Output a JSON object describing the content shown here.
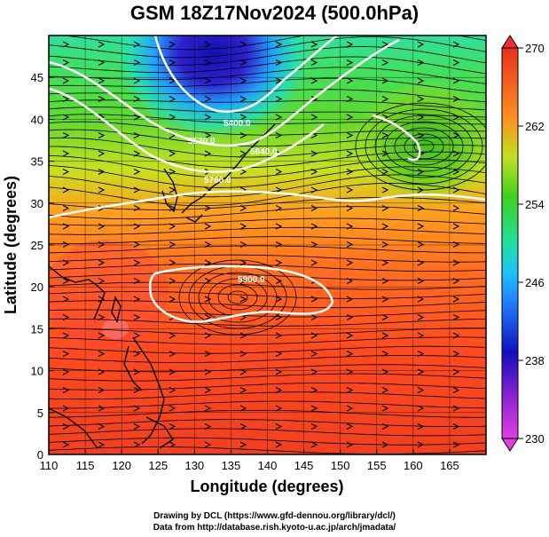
{
  "title": "GSM 18Z17Nov2024 (500.0hPa)",
  "x_axis": {
    "label": "Longitude (degrees)",
    "range": [
      110,
      170
    ],
    "ticks": [
      "110",
      "115",
      "120",
      "125",
      "130",
      "135",
      "140",
      "145",
      "150",
      "155",
      "160",
      "165"
    ]
  },
  "y_axis": {
    "label": "Latitude (degrees)",
    "range": [
      0,
      50
    ],
    "ticks": [
      "0",
      "5",
      "10",
      "15",
      "20",
      "25",
      "30",
      "35",
      "40",
      "45"
    ]
  },
  "colorbar": {
    "min": 230,
    "max": 270,
    "labels": [
      "270",
      "262",
      "254",
      "246",
      "238",
      "230"
    ]
  },
  "contours": [
    {
      "label": "5400.0"
    },
    {
      "label": "5520.0"
    },
    {
      "label": "5640.0"
    },
    {
      "label": "5760.0"
    },
    {
      "label": "5900.0"
    }
  ],
  "footer": {
    "line1": "Drawing by DCL (https://www.gfd-dennou.org/library/dcl/)",
    "line2": "Data from http://database.rish.kyoto-u.ac.jp/arch/jmadata/"
  },
  "colors": {
    "scale": [
      "#e040e0",
      "#1010c0",
      "#20a0ff",
      "#20e0a0",
      "#40d020",
      "#c0e020",
      "#ff9020",
      "#ff5020",
      "#e83020"
    ]
  }
}
